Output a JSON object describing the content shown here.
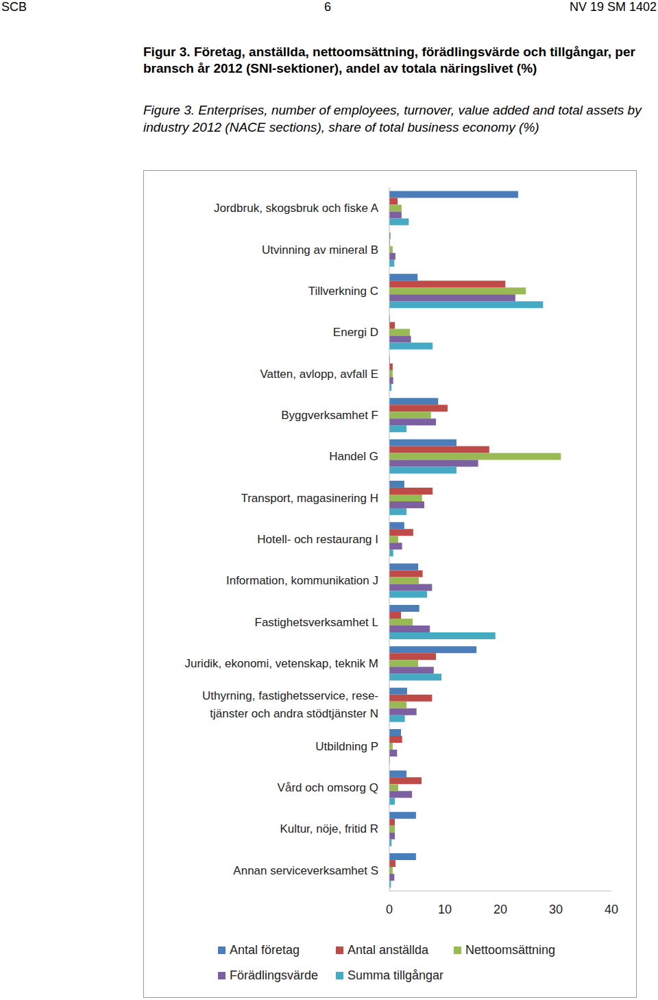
{
  "page_header": {
    "left": "SCB",
    "center": "6",
    "right": "NV 19 SM 1402"
  },
  "chart_data": {
    "type": "bar",
    "orientation": "horizontal",
    "title": "Figur 3. Företag, anställda, nettoomsättning, förädlingsvärde och tillgångar, per bransch år 2012 (SNI-sektioner), andel av totala näringslivet (%)",
    "subtitle": "Figure 3. Enterprises, number of employees, turnover, value added and total assets by industry 2012 (NACE sections), share of total business economy (%)",
    "categories": [
      "Jordbruk, skogsbruk och fiske A",
      "Utvinning av mineral  B",
      "Tillverkning  C",
      "Energi  D",
      "Vatten, avlopp, avfall E",
      "Byggverksamhet  F",
      "Handel  G",
      "Transport, magasinering  H",
      "Hotell- och restaurang  I",
      "Information, kommunikation  J",
      "Fastighetsverksamhet  L",
      "Juridik, ekonomi, vetenskap, teknik  M",
      "Uthyrning, fastighetsservice, rese-\ntjänster och andra stödtjänster  N",
      "Utbildning  P",
      "Vård och omsorg  Q",
      "Kultur, nöje, fritid  R",
      "Annan serviceverksamhet  S"
    ],
    "series": [
      {
        "name": "Antal företag",
        "color": "#4a7ebb",
        "values": [
          23.2,
          0.2,
          5.1,
          0.1,
          0.1,
          8.8,
          12.1,
          2.7,
          2.7,
          5.2,
          5.4,
          15.7,
          3.2,
          2.1,
          3.1,
          4.8,
          4.8
        ]
      },
      {
        "name": "Antal anställda",
        "color": "#be4b48",
        "values": [
          1.5,
          0.1,
          20.9,
          1.0,
          0.6,
          10.5,
          18.0,
          7.8,
          4.3,
          6.0,
          2.1,
          8.4,
          7.7,
          2.3,
          5.8,
          1.0,
          1.1
        ]
      },
      {
        "name": "Nettoomsättning",
        "color": "#98b954",
        "values": [
          2.2,
          0.6,
          24.6,
          3.7,
          0.6,
          7.5,
          30.9,
          5.9,
          1.6,
          5.3,
          4.2,
          5.2,
          3.1,
          0.6,
          1.6,
          1.0,
          0.6
        ]
      },
      {
        "name": "Förädlingsvärde",
        "color": "#7d60a0",
        "values": [
          2.2,
          1.1,
          22.7,
          3.9,
          0.7,
          8.4,
          16.0,
          6.3,
          2.3,
          7.7,
          7.3,
          8.0,
          4.9,
          1.4,
          4.1,
          1.0,
          0.9
        ]
      },
      {
        "name": "Summa tillgångar",
        "color": "#46aac5",
        "values": [
          3.5,
          0.9,
          27.7,
          7.8,
          0.4,
          3.1,
          12.1,
          3.1,
          0.7,
          6.8,
          19.1,
          9.4,
          2.8,
          0.1,
          1.0,
          0.4,
          0.3
        ]
      }
    ],
    "xlim": [
      0,
      40
    ],
    "xticks": [
      0,
      10,
      20,
      30,
      40
    ],
    "grid": false,
    "legend": "bottom"
  }
}
